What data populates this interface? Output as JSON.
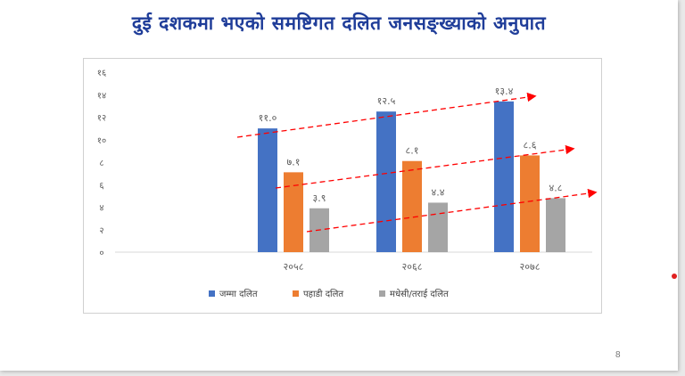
{
  "slide": {
    "title": "दुई दशकमा भएको समष्टिगत दलित जनसङ्ख्याको अनुपात",
    "page_number": "8"
  },
  "chart_data": {
    "type": "bar",
    "categories": [
      "२०५८",
      "२०६८",
      "२०७८"
    ],
    "series": [
      {
        "name": "जम्मा दलित",
        "color": "#4472c4",
        "values": [
          11.0,
          12.5,
          13.4
        ],
        "labels": [
          "११.०",
          "१२.५",
          "१३.४"
        ]
      },
      {
        "name": "पहाडी दलित",
        "color": "#ed7d31",
        "values": [
          7.1,
          8.1,
          8.6
        ],
        "labels": [
          "७.१",
          "८.१",
          "८.६"
        ]
      },
      {
        "name": "मधेसी/तराई दलित",
        "color": "#a5a5a5",
        "values": [
          3.9,
          4.4,
          4.8
        ],
        "labels": [
          "३.९",
          "४.४",
          "४.८"
        ]
      }
    ],
    "ylim": [
      0,
      16
    ],
    "yticks": [
      0,
      2,
      4,
      6,
      8,
      10,
      12,
      14,
      16
    ],
    "ytick_labels": [
      "०",
      "२",
      "४",
      "६",
      "८",
      "१०",
      "१२",
      "१४",
      "१६"
    ],
    "grid": false,
    "legend_position": "bottom",
    "trend_arrow_color": "#ff0000"
  }
}
